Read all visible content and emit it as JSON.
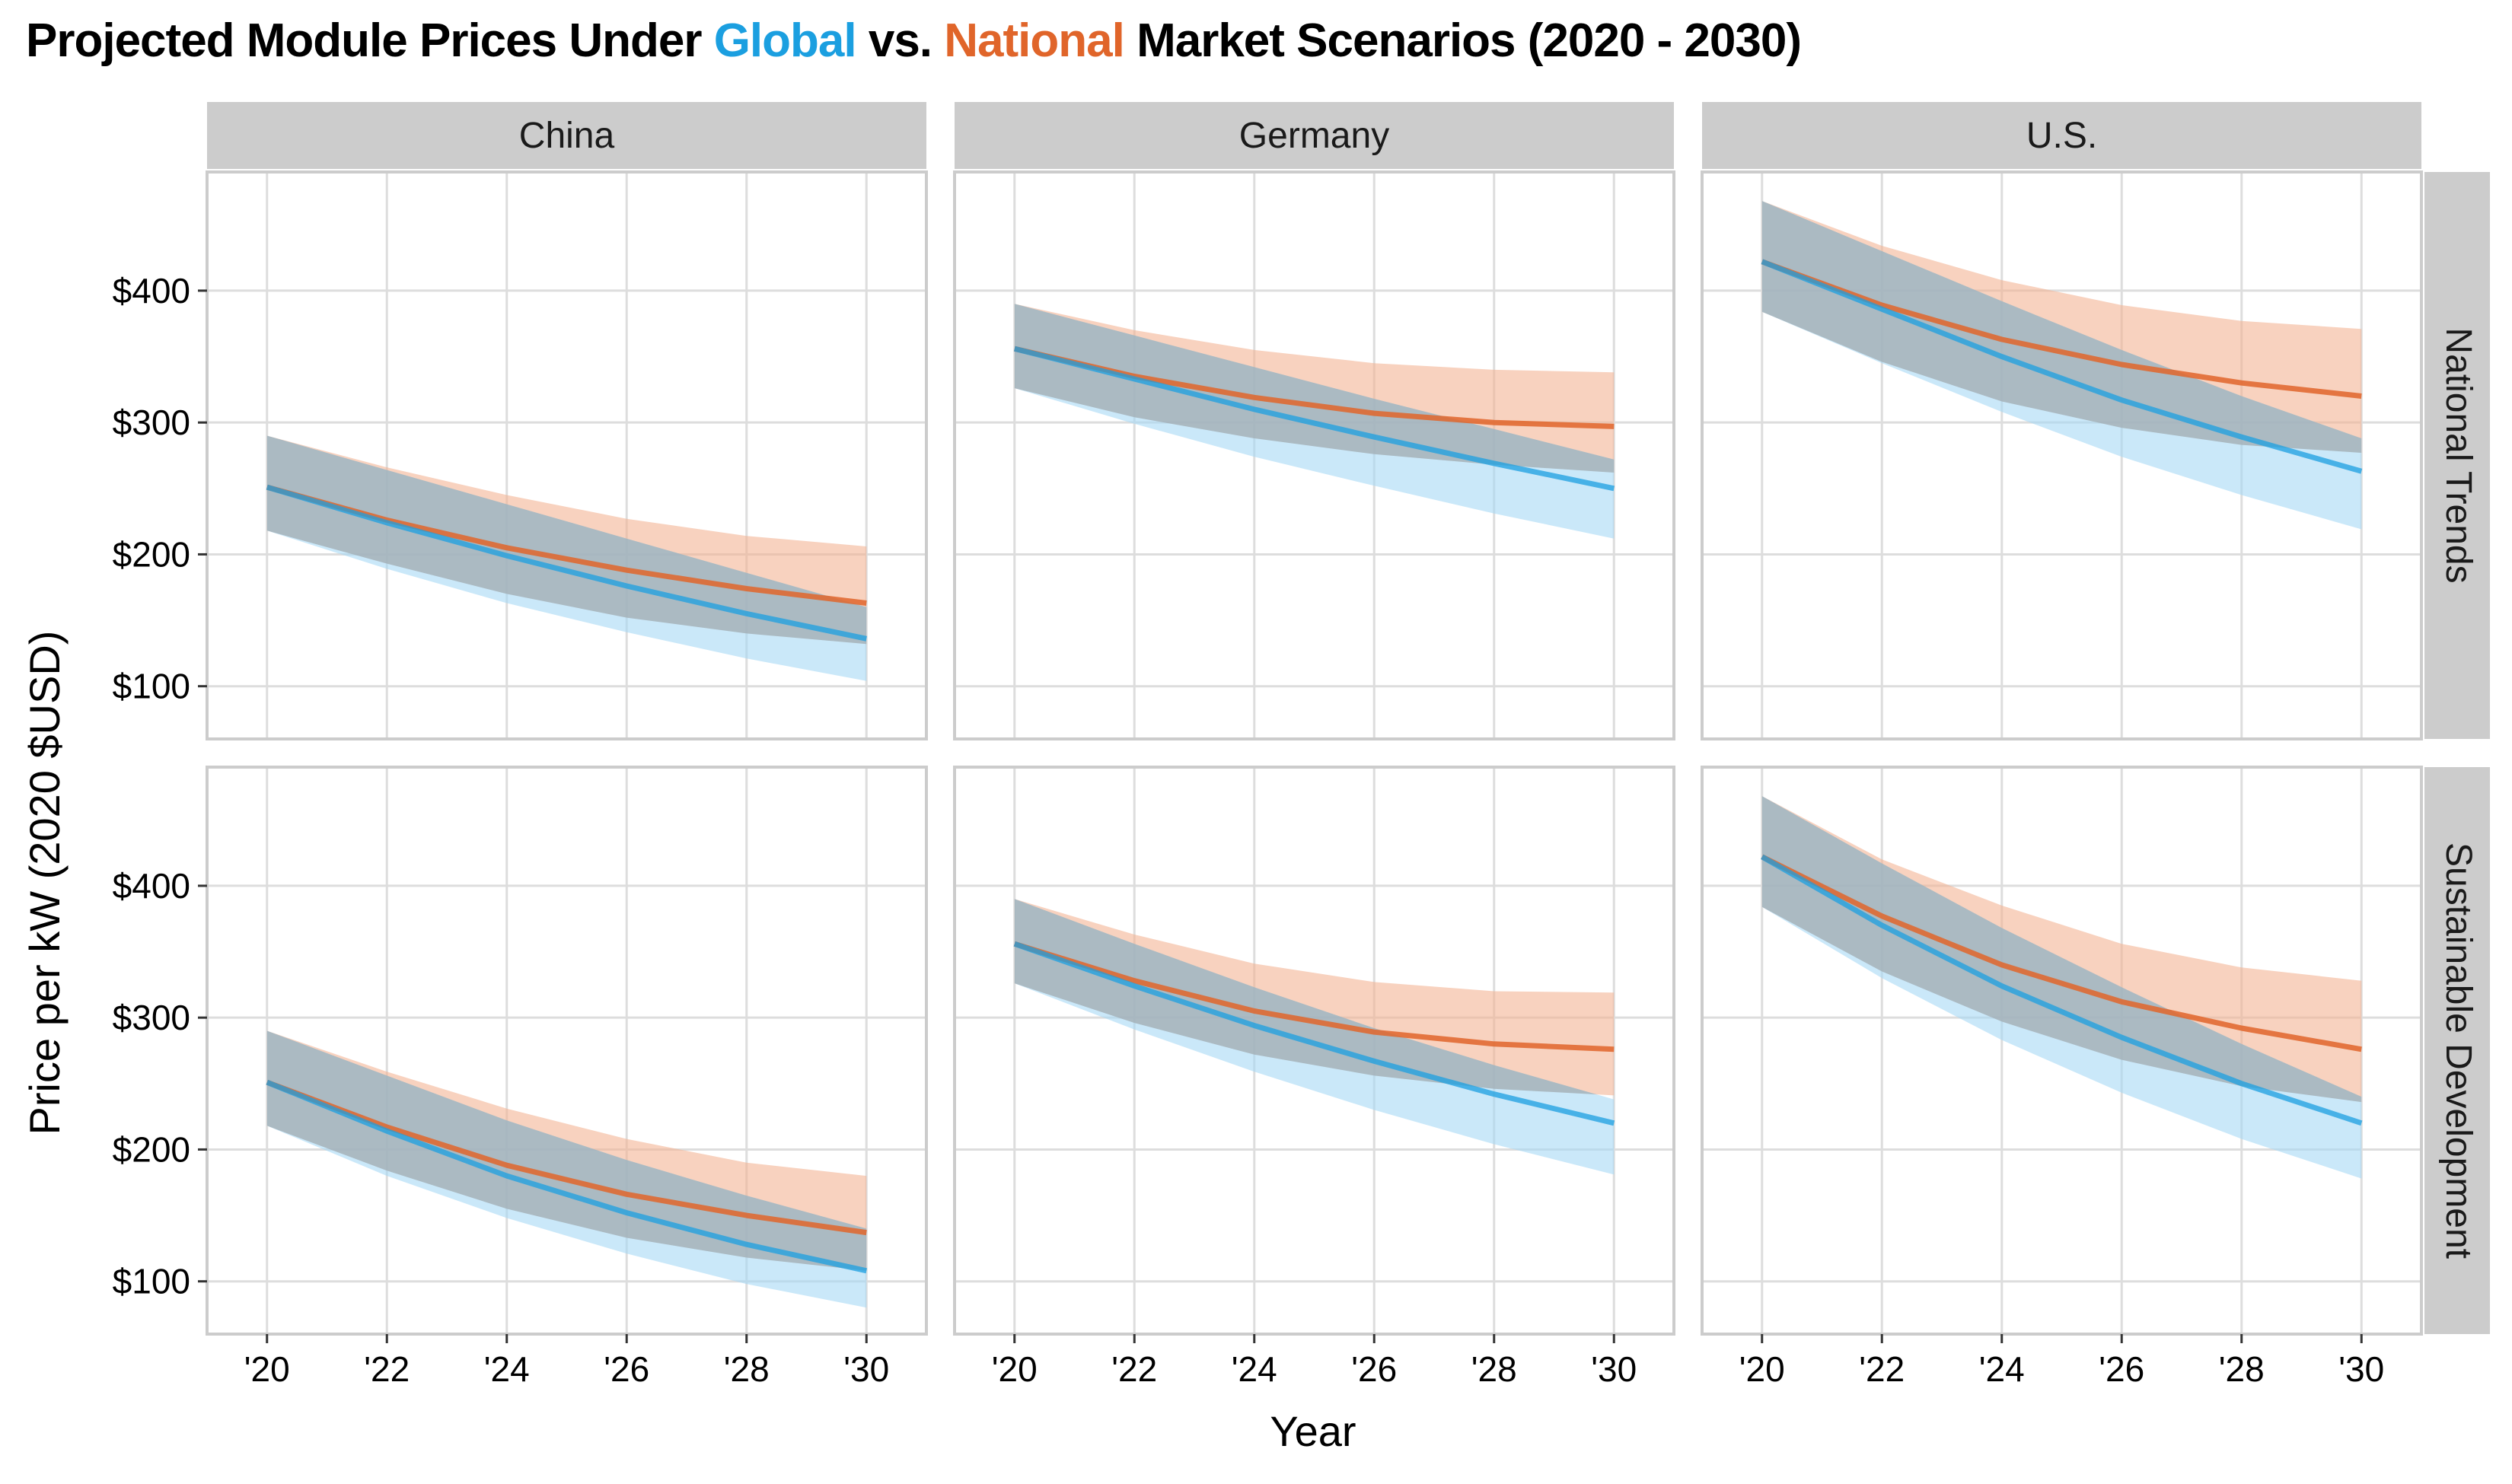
{
  "title": {
    "part1": "Projected Module Prices Under ",
    "global": "Global",
    "part2": " vs. ",
    "national": "National",
    "part3": " Market Scenarios (2020 - 2030)"
  },
  "colors": {
    "global": "#1b9fe0",
    "national": "#e0652a",
    "global_band": "#a6d8f5",
    "national_band": "#f4b494",
    "strip": "#cccccc",
    "grid": "#dddddd"
  },
  "chart_data": {
    "type": "line",
    "title": "Projected Module Prices Under Global vs. National Market Scenarios (2020 - 2030)",
    "xlabel": "Year",
    "ylabel": "Price per kW (2020 $USD)",
    "x_ticks": [
      "'20",
      "'22",
      "'24",
      "'26",
      "'28",
      "'30"
    ],
    "y_ticks": [
      "$100",
      "$200",
      "$300",
      "$400"
    ],
    "xlim": [
      2019,
      2031
    ],
    "ylim": [
      60,
      490
    ],
    "columns": [
      "China",
      "Germany",
      "U.S."
    ],
    "rows": [
      "National Trends",
      "Sustainable Development"
    ],
    "series_names": [
      "Global",
      "National"
    ],
    "x": [
      2020,
      2022,
      2024,
      2026,
      2028,
      2030
    ],
    "panels": [
      {
        "column": "China",
        "row": "National Trends",
        "global": {
          "mid": [
            251,
            224,
            199,
            176,
            155,
            136
          ],
          "low": [
            218,
            189,
            163,
            141,
            121,
            104
          ],
          "high": [
            290,
            264,
            238,
            212,
            186,
            160
          ]
        },
        "national": {
          "mid": [
            251,
            226,
            205,
            188,
            174,
            163
          ],
          "low": [
            218,
            193,
            170,
            152,
            140,
            132
          ],
          "high": [
            290,
            266,
            245,
            227,
            214,
            206
          ]
        }
      },
      {
        "column": "Germany",
        "row": "National Trends",
        "global": {
          "mid": [
            356,
            333,
            310,
            289,
            269,
            250
          ],
          "low": [
            326,
            299,
            274,
            252,
            231,
            212
          ],
          "high": [
            390,
            366,
            342,
            318,
            295,
            272
          ]
        },
        "national": {
          "mid": [
            356,
            335,
            319,
            307,
            300,
            297
          ],
          "low": [
            326,
            304,
            288,
            276,
            268,
            262
          ],
          "high": [
            390,
            370,
            355,
            345,
            340,
            338
          ]
        }
      },
      {
        "column": "U.S.",
        "row": "National Trends",
        "global": {
          "mid": [
            422,
            386,
            350,
            317,
            289,
            263
          ],
          "low": [
            384,
            345,
            308,
            274,
            245,
            219
          ],
          "high": [
            468,
            430,
            392,
            355,
            320,
            288
          ]
        },
        "national": {
          "mid": [
            422,
            389,
            363,
            344,
            330,
            320
          ],
          "low": [
            384,
            346,
            316,
            296,
            283,
            277
          ],
          "high": [
            468,
            434,
            408,
            389,
            377,
            371
          ]
        }
      },
      {
        "column": "China",
        "row": "Sustainable Development",
        "global": {
          "mid": [
            251,
            214,
            180,
            152,
            128,
            108
          ],
          "low": [
            218,
            180,
            148,
            121,
            98,
            80
          ],
          "high": [
            290,
            256,
            222,
            192,
            165,
            140
          ]
        },
        "national": {
          "mid": [
            251,
            217,
            188,
            166,
            150,
            137
          ],
          "low": [
            218,
            184,
            155,
            133,
            118,
            108
          ],
          "high": [
            290,
            259,
            231,
            208,
            190,
            180
          ]
        }
      },
      {
        "column": "Germany",
        "row": "Sustainable Development",
        "global": {
          "mid": [
            356,
            324,
            294,
            267,
            242,
            220
          ],
          "low": [
            326,
            291,
            259,
            230,
            204,
            181
          ],
          "high": [
            390,
            356,
            323,
            292,
            264,
            238
          ]
        },
        "national": {
          "mid": [
            356,
            328,
            305,
            289,
            280,
            276
          ],
          "low": [
            326,
            296,
            272,
            256,
            246,
            241
          ],
          "high": [
            390,
            363,
            341,
            327,
            320,
            319
          ]
        }
      },
      {
        "column": "U.S.",
        "row": "Sustainable Development",
        "global": {
          "mid": [
            422,
            370,
            324,
            285,
            250,
            220
          ],
          "low": [
            384,
            330,
            283,
            243,
            208,
            178
          ],
          "high": [
            468,
            417,
            368,
            323,
            280,
            240
          ]
        },
        "national": {
          "mid": [
            422,
            377,
            340,
            312,
            292,
            276
          ],
          "low": [
            384,
            335,
            297,
            268,
            248,
            236
          ],
          "high": [
            468,
            420,
            385,
            356,
            338,
            328
          ]
        }
      }
    ]
  }
}
